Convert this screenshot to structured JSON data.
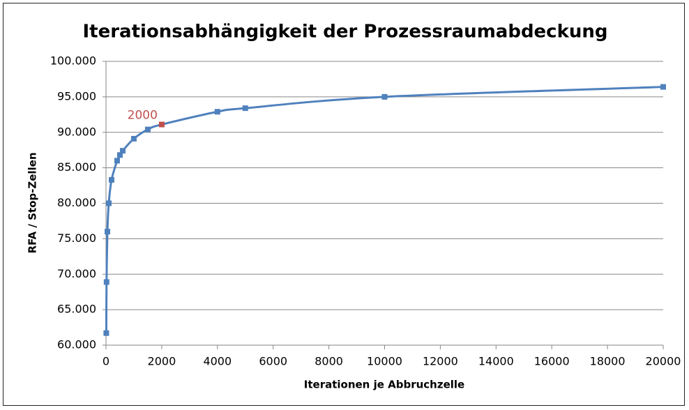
{
  "chart_data": {
    "type": "line",
    "title": "Iterationsabhängigkeit der Prozessraumabdeckung",
    "x_label": "Iterationen je Abbruchzelle",
    "y_label": "RFA / Stop-Zellen",
    "x": [
      10,
      20,
      50,
      100,
      200,
      400,
      500,
      600,
      1000,
      1500,
      2000,
      4000,
      5000,
      10000,
      20000
    ],
    "series": [
      {
        "color": "#4f81bd",
        "values": [
          61.7,
          68.9,
          76.0,
          80.0,
          83.3,
          86.0,
          86.8,
          87.4,
          89.1,
          90.4,
          91.1,
          92.9,
          93.4,
          95.0,
          96.4
        ]
      }
    ],
    "annotations": [
      {
        "text": "2000",
        "color": "#c0504d"
      }
    ],
    "xlim": [
      0,
      20000
    ],
    "xticks": [
      0,
      2000,
      4000,
      6000,
      8000,
      10000,
      12000,
      14000,
      16000,
      18000,
      20000
    ],
    "ylim": [
      60,
      100
    ],
    "yticks": [
      {
        "value": 60,
        "label": "60.000"
      },
      {
        "value": 65,
        "label": "65.000"
      },
      {
        "value": 70,
        "label": "70.000"
      },
      {
        "value": 75,
        "label": "75.000"
      },
      {
        "value": 80,
        "label": "80.000"
      },
      {
        "value": 85,
        "label": "85.000"
      },
      {
        "value": 90,
        "label": "90.000"
      },
      {
        "value": 95,
        "label": "95.000"
      },
      {
        "value": 100,
        "label": "100.000"
      }
    ],
    "grid": true
  }
}
